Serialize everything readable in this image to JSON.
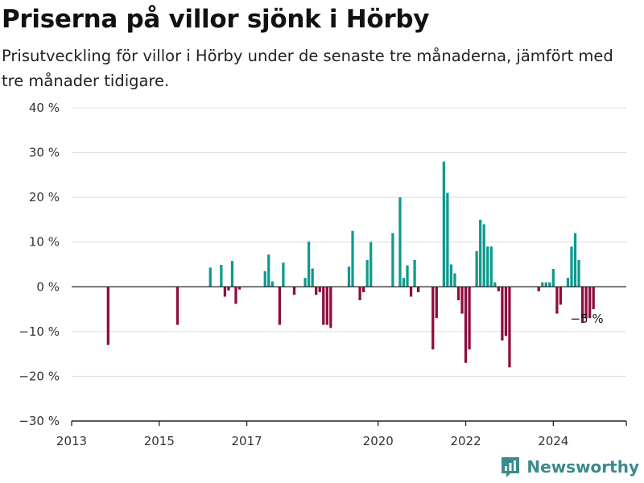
{
  "header": {
    "title": "Priserna på villor sjönk i Hörby",
    "subtitle": "Prisutveckling för villor i Hörby under de senaste tre månaderna, jämfört med tre månader tidigare."
  },
  "brand": {
    "name": "Newsworthy",
    "icon": "newsworthy-logo-icon"
  },
  "colors": {
    "positive": "#0f9a8e",
    "negative": "#8e0c3e",
    "grid": "#dddddd",
    "axis": "#222222"
  },
  "chart_data": {
    "type": "bar",
    "title": "Priserna på villor sjönk i Hörby",
    "subtitle": "Prisutveckling för villor i Hörby under de senaste tre månaderna, jämfört med tre månader tidigare.",
    "xlabel": "",
    "ylabel": "",
    "ylim": [
      -30,
      40
    ],
    "xlim": [
      "2013-01",
      "2025-09"
    ],
    "grid": true,
    "yticks": [
      {
        "value": 40,
        "label": "40 %"
      },
      {
        "value": 30,
        "label": "30 %"
      },
      {
        "value": 20,
        "label": "20 %"
      },
      {
        "value": 10,
        "label": "10 %"
      },
      {
        "value": 0,
        "label": "0 %"
      },
      {
        "value": -10,
        "label": "−10 %"
      },
      {
        "value": -20,
        "label": "−20 %"
      },
      {
        "value": -30,
        "label": "−30 %"
      }
    ],
    "xticks": [
      {
        "value": "2013-01",
        "label": "2013"
      },
      {
        "value": "2015-01",
        "label": "2015"
      },
      {
        "value": "2017-01",
        "label": "2017"
      },
      {
        "value": "2020-01",
        "label": "2020"
      },
      {
        "value": "2022-01",
        "label": "2022"
      },
      {
        "value": "2024-01",
        "label": "2024"
      }
    ],
    "annotations": [
      {
        "x": "2024-07",
        "y": -5,
        "label": "−5 %"
      }
    ],
    "series": [
      {
        "points": [
          {
            "x": "2013-11",
            "y": -13
          },
          {
            "x": "2015-06",
            "y": -8.5
          },
          {
            "x": "2016-03",
            "y": 4.3
          },
          {
            "x": "2016-06",
            "y": 4.9
          },
          {
            "x": "2016-07",
            "y": -2.2
          },
          {
            "x": "2016-08",
            "y": -0.8
          },
          {
            "x": "2016-09",
            "y": 5.8
          },
          {
            "x": "2016-10",
            "y": -3.8
          },
          {
            "x": "2016-11",
            "y": -0.6
          },
          {
            "x": "2017-06",
            "y": 3.5
          },
          {
            "x": "2017-07",
            "y": 7.2
          },
          {
            "x": "2017-08",
            "y": 1.2
          },
          {
            "x": "2017-10",
            "y": -8.5
          },
          {
            "x": "2017-11",
            "y": 5.4
          },
          {
            "x": "2018-02",
            "y": -1.8
          },
          {
            "x": "2018-05",
            "y": 2.0
          },
          {
            "x": "2018-06",
            "y": 10.1
          },
          {
            "x": "2018-07",
            "y": 4.1
          },
          {
            "x": "2018-08",
            "y": -1.8
          },
          {
            "x": "2018-09",
            "y": -1.2
          },
          {
            "x": "2018-10",
            "y": -8.5
          },
          {
            "x": "2018-11",
            "y": -8.5
          },
          {
            "x": "2018-12",
            "y": -9.2
          },
          {
            "x": "2019-05",
            "y": 4.5
          },
          {
            "x": "2019-06",
            "y": 12.5
          },
          {
            "x": "2019-08",
            "y": -3.0
          },
          {
            "x": "2019-09",
            "y": -1.2
          },
          {
            "x": "2019-10",
            "y": 6.0
          },
          {
            "x": "2019-11",
            "y": 10.0
          },
          {
            "x": "2020-05",
            "y": 12.0
          },
          {
            "x": "2020-07",
            "y": 20.0
          },
          {
            "x": "2020-08",
            "y": 2.0
          },
          {
            "x": "2020-09",
            "y": 4.8
          },
          {
            "x": "2020-10",
            "y": -2.2
          },
          {
            "x": "2020-11",
            "y": 6.0
          },
          {
            "x": "2020-12",
            "y": -1.2
          },
          {
            "x": "2021-04",
            "y": -14.0
          },
          {
            "x": "2021-05",
            "y": -7.0
          },
          {
            "x": "2021-07",
            "y": 28.0
          },
          {
            "x": "2021-08",
            "y": 21.0
          },
          {
            "x": "2021-09",
            "y": 5.0
          },
          {
            "x": "2021-10",
            "y": 3.0
          },
          {
            "x": "2021-11",
            "y": -3.0
          },
          {
            "x": "2021-12",
            "y": -6.0
          },
          {
            "x": "2022-01",
            "y": -17.0
          },
          {
            "x": "2022-02",
            "y": -14.0
          },
          {
            "x": "2022-04",
            "y": 8.0
          },
          {
            "x": "2022-05",
            "y": 15.0
          },
          {
            "x": "2022-06",
            "y": 14.0
          },
          {
            "x": "2022-07",
            "y": 9.0
          },
          {
            "x": "2022-08",
            "y": 9.0
          },
          {
            "x": "2022-09",
            "y": 1.0
          },
          {
            "x": "2022-10",
            "y": -1.0
          },
          {
            "x": "2022-11",
            "y": -12.0
          },
          {
            "x": "2022-12",
            "y": -11.0
          },
          {
            "x": "2023-01",
            "y": -18.0
          },
          {
            "x": "2023-09",
            "y": -1.0
          },
          {
            "x": "2023-10",
            "y": 1.0
          },
          {
            "x": "2023-11",
            "y": 1.0
          },
          {
            "x": "2023-12",
            "y": 1.0
          },
          {
            "x": "2024-01",
            "y": 4.0
          },
          {
            "x": "2024-02",
            "y": -6.0
          },
          {
            "x": "2024-03",
            "y": -4.0
          },
          {
            "x": "2024-05",
            "y": 2.0
          },
          {
            "x": "2024-06",
            "y": 9.0
          },
          {
            "x": "2024-07",
            "y": 12.0
          },
          {
            "x": "2024-08",
            "y": 6.0
          },
          {
            "x": "2024-09",
            "y": -8.0
          },
          {
            "x": "2024-10",
            "y": -7.0
          },
          {
            "x": "2024-11",
            "y": -7.0
          },
          {
            "x": "2024-12",
            "y": -5.0
          }
        ]
      }
    ]
  }
}
